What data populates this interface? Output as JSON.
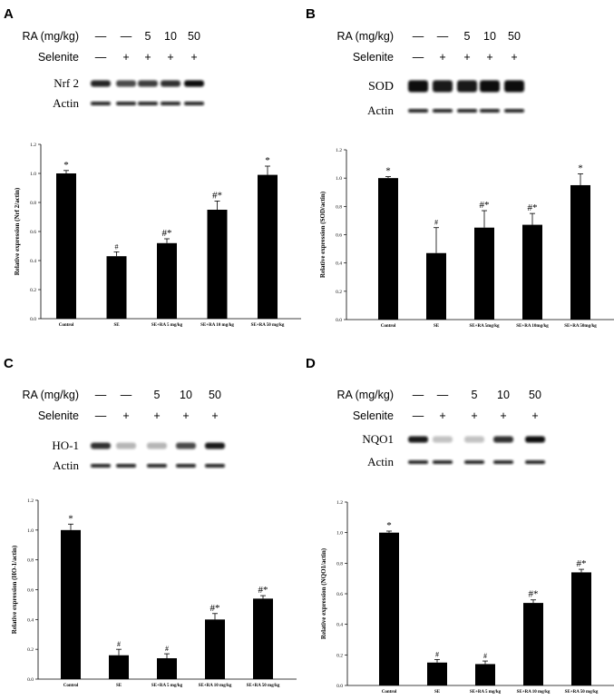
{
  "colors": {
    "bar": "#000000",
    "band": "#111111",
    "background": "#ffffff"
  },
  "panels": [
    {
      "label": "A",
      "blot": {
        "treat_rows": [
          {
            "label": "RA (mg/kg)",
            "values": [
              "—",
              "—",
              "5",
              "10",
              "50"
            ]
          },
          {
            "label": "Selenite",
            "values": [
              "—",
              "+",
              "+",
              "+",
              "+"
            ]
          }
        ],
        "protein": "Nrf 2",
        "loading": "Actin",
        "band_intensity": [
          0.9,
          0.75,
          0.8,
          0.85,
          1.0
        ]
      },
      "chart_data": {
        "type": "bar",
        "categories": [
          "Control",
          "SE",
          "SE+RA 5 mg/kg",
          "SE+RA 10 mg/kg",
          "SE+RA 50 mg/kg"
        ],
        "values": [
          1.0,
          0.43,
          0.52,
          0.75,
          0.99
        ],
        "errors": [
          0.02,
          0.03,
          0.03,
          0.06,
          0.06
        ],
        "significance": [
          "*",
          "#",
          "#*",
          "#*",
          "*"
        ],
        "ylabel": "Relative expression (Nrf 2/actin)",
        "ylim": [
          0,
          1.2
        ],
        "yticks": [
          "0.0",
          "0.2",
          "0.4",
          "0.6",
          "0.8",
          "1.0",
          "1.2"
        ]
      }
    },
    {
      "label": "B",
      "blot": {
        "treat_rows": [
          {
            "label": "RA (mg/kg)",
            "values": [
              "—",
              "—",
              "5",
              "10",
              "50"
            ]
          },
          {
            "label": "Selenite",
            "values": [
              "—",
              "+",
              "+",
              "+",
              "+"
            ]
          }
        ],
        "protein": "SOD",
        "loading": "Actin",
        "band_intensity": [
          1.0,
          0.95,
          0.95,
          1.0,
          1.0
        ]
      },
      "chart_data": {
        "type": "bar",
        "categories": [
          "Control",
          "SE",
          "SE+RA 5mg/kg",
          "SE+RA 10mg/kg",
          "SE+RA 50mg/kg"
        ],
        "values": [
          1.0,
          0.47,
          0.65,
          0.67,
          0.95
        ],
        "errors": [
          0.01,
          0.18,
          0.12,
          0.08,
          0.08
        ],
        "significance": [
          "*",
          "#",
          "#*",
          "#*",
          "*"
        ],
        "ylabel": "Relative expression (SOD/actin)",
        "ylim": [
          0,
          1.2
        ],
        "yticks": [
          "0.0",
          "0.2",
          "0.4",
          "0.6",
          "0.8",
          "1.0",
          "1.2"
        ]
      }
    },
    {
      "label": "C",
      "blot": {
        "treat_rows": [
          {
            "label": "RA (mg/kg)",
            "values": [
              "—",
              "—",
              "5",
              "10",
              "50"
            ]
          },
          {
            "label": "Selenite",
            "values": [
              "—",
              "+",
              "+",
              "+",
              "+"
            ]
          }
        ],
        "protein": "HO-1",
        "loading": "Actin",
        "band_intensity": [
          0.85,
          0.3,
          0.3,
          0.75,
          0.95
        ]
      },
      "chart_data": {
        "type": "bar",
        "categories": [
          "Control",
          "SE",
          "SE+RA 5 mg/kg",
          "SE+RA 10 mg/kg",
          "SE+RA 50 mg/kg"
        ],
        "values": [
          1.0,
          0.16,
          0.14,
          0.4,
          0.54
        ],
        "errors": [
          0.04,
          0.04,
          0.03,
          0.04,
          0.02
        ],
        "significance": [
          "*",
          "#",
          "#",
          "#*",
          "#*"
        ],
        "ylabel": "Relative expression (HO-1/actin)",
        "ylim": [
          0,
          1.2
        ],
        "yticks": [
          "0.0",
          "0.2",
          "0.4",
          "0.6",
          "0.8",
          "1.0",
          "1.2"
        ]
      }
    },
    {
      "label": "D",
      "blot": {
        "treat_rows": [
          {
            "label": "RA (mg/kg)",
            "values": [
              "—",
              "—",
              "5",
              "10",
              "50"
            ]
          },
          {
            "label": "Selenite",
            "values": [
              "—",
              "+",
              "+",
              "+",
              "+"
            ]
          }
        ],
        "protein": "NQO1",
        "loading": "Actin",
        "band_intensity": [
          0.95,
          0.25,
          0.25,
          0.85,
          1.0
        ]
      },
      "chart_data": {
        "type": "bar",
        "categories": [
          "Control",
          "SE",
          "SE+RA 5 mg/kg",
          "SE+RA 10 mg/kg",
          "SE+RA 50 mg/kg"
        ],
        "values": [
          1.0,
          0.15,
          0.14,
          0.54,
          0.74
        ],
        "errors": [
          0.01,
          0.02,
          0.02,
          0.02,
          0.02
        ],
        "significance": [
          "*",
          "#",
          "#",
          "#*",
          "#*"
        ],
        "ylabel": "Relative expression (NQO1/actin)",
        "ylim": [
          0,
          1.2
        ],
        "yticks": [
          "0.0",
          "0.2",
          "0.4",
          "0.6",
          "0.8",
          "1.0",
          "1.2"
        ]
      }
    }
  ]
}
